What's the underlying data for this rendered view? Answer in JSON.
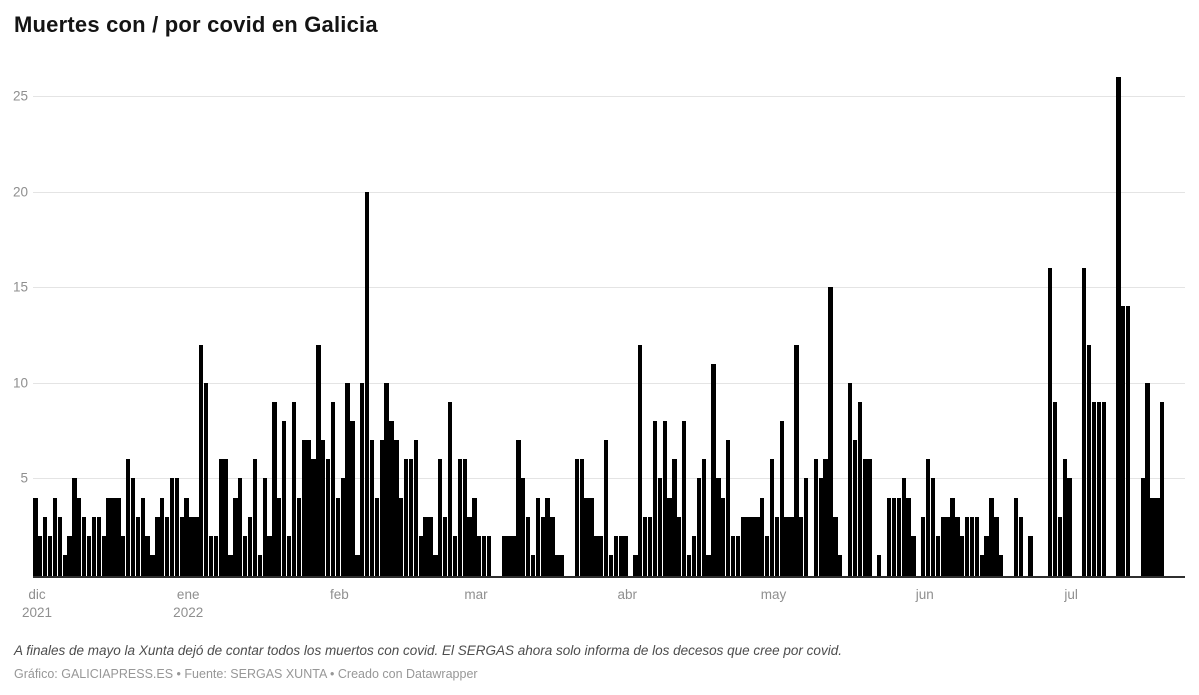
{
  "title": "Muertes con / por covid en Galicia",
  "chart_data": {
    "type": "bar",
    "title": "Muertes con / por covid en Galicia",
    "xlabel": "",
    "ylabel": "",
    "x_start": "2021-12-01",
    "x_end": "2022-07-20",
    "ylim": [
      0,
      26
    ],
    "y_ticks": [
      5,
      10,
      15,
      20,
      25
    ],
    "grid": "horizontal",
    "legend": "none",
    "series_name": "muertes diarias",
    "months": [
      {
        "label": "dic",
        "year": "2021",
        "start_day": 0
      },
      {
        "label": "ene",
        "year": "2022",
        "start_day": 31
      },
      {
        "label": "feb",
        "year": "",
        "start_day": 62
      },
      {
        "label": "mar",
        "year": "",
        "start_day": 90
      },
      {
        "label": "abr",
        "year": "",
        "start_day": 121
      },
      {
        "label": "may",
        "year": "",
        "start_day": 151
      },
      {
        "label": "jun",
        "year": "",
        "start_day": 182
      },
      {
        "label": "jul",
        "year": "",
        "start_day": 212
      }
    ],
    "values": [
      4,
      2,
      3,
      2,
      4,
      3,
      1,
      2,
      5,
      4,
      3,
      2,
      3,
      3,
      2,
      4,
      4,
      4,
      2,
      6,
      5,
      3,
      4,
      2,
      1,
      3,
      4,
      3,
      5,
      5,
      3,
      4,
      3,
      3,
      12,
      10,
      2,
      2,
      6,
      6,
      1,
      4,
      5,
      2,
      3,
      6,
      1,
      5,
      2,
      9,
      4,
      8,
      2,
      9,
      4,
      7,
      7,
      6,
      12,
      7,
      6,
      9,
      4,
      5,
      10,
      8,
      1,
      10,
      20,
      7,
      4,
      7,
      10,
      8,
      7,
      4,
      6,
      6,
      7,
      2,
      3,
      3,
      1,
      6,
      3,
      9,
      2,
      6,
      6,
      3,
      4,
      2,
      2,
      2,
      0,
      0,
      2,
      2,
      2,
      7,
      5,
      3,
      1,
      4,
      3,
      4,
      3,
      1,
      1,
      0,
      0,
      6,
      6,
      4,
      4,
      2,
      2,
      7,
      1,
      2,
      2,
      2,
      0,
      1,
      12,
      3,
      3,
      8,
      5,
      8,
      4,
      6,
      3,
      8,
      1,
      2,
      5,
      6,
      1,
      11,
      5,
      4,
      7,
      2,
      2,
      3,
      3,
      3,
      3,
      4,
      2,
      6,
      3,
      8,
      3,
      3,
      12,
      3,
      5,
      0,
      6,
      5,
      6,
      15,
      3,
      1,
      0,
      10,
      7,
      9,
      6,
      6,
      0,
      1,
      0,
      4,
      4,
      4,
      5,
      4,
      2,
      0,
      3,
      6,
      5,
      2,
      3,
      3,
      4,
      3,
      2,
      3,
      3,
      3,
      1,
      2,
      4,
      3,
      1,
      0,
      0,
      4,
      3,
      0,
      2,
      0,
      0,
      0,
      16,
      9,
      3,
      6,
      5,
      0,
      0,
      16,
      12,
      9,
      9,
      9,
      0,
      0,
      26,
      14,
      14,
      0,
      0,
      5,
      10,
      4,
      4,
      9
    ]
  },
  "footer": {
    "note": "A finales de mayo la Xunta dejó de contar todos los muertos con covid. El SERGAS ahora solo informa de los decesos que cree por covid.",
    "credit": "Gráfico: GALICIAPRESS.ES • Fuente: SERGAS XUNTA • Creado con Datawrapper"
  },
  "colors": {
    "bar": "#000000",
    "grid": "#e4e4e4",
    "axis": "#2f2f2f",
    "tick_label": "#8f8f8f",
    "title": "#141414",
    "note": "#4d4d4d",
    "credit": "#979797",
    "background": "#ffffff"
  }
}
